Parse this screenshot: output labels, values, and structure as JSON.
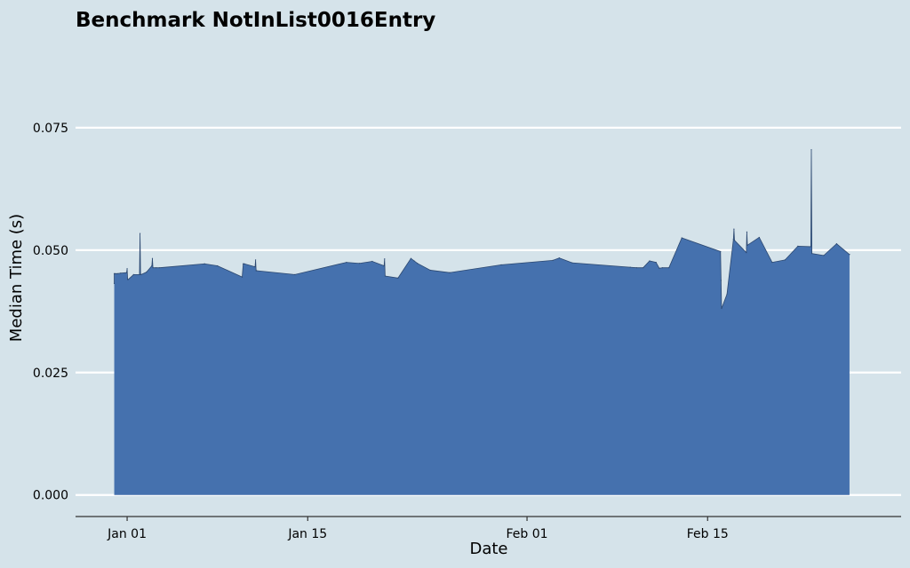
{
  "chart_data": {
    "type": "area",
    "title": "Benchmark NotInList0016Entry",
    "xlabel": "Date",
    "ylabel": "Median Time (s)",
    "x_ticks": [
      "Jan 01",
      "Jan 15",
      "Feb 01",
      "Feb 15"
    ],
    "x_tick_dates": [
      "2024-01-01",
      "2024-01-15",
      "2024-02-01",
      "2024-02-15"
    ],
    "y_ticks": [
      "0.000",
      "0.025",
      "0.050",
      "0.075"
    ],
    "y_tick_values": [
      0.0,
      0.025,
      0.05,
      0.075
    ],
    "xlim": [
      "2023-12-28T00:00",
      "2024-03-01T00:00"
    ],
    "ylim": [
      -0.0044,
      0.0757
    ],
    "grid": "horizontal",
    "fill_color": "#4571ae",
    "line_color": "#2c4870",
    "series": [
      {
        "x": [
          "2023-12-31T00:00",
          "2023-12-31T00:00",
          "2023-12-31T02:00",
          "2023-12-31T06:00",
          "2023-12-31T12:00",
          "2023-12-31T23:00",
          "2024-01-01T00:00",
          "2024-01-01T01:00",
          "2024-01-01T02:00",
          "2024-01-01T12:00",
          "2024-01-01T23:00",
          "2024-01-02T00:00",
          "2024-01-02T01:00",
          "2024-01-02T02:00",
          "2024-01-02T12:00",
          "2024-01-02T22:00",
          "2024-01-02T23:00",
          "2024-01-03T00:00",
          "2024-01-03T06:00",
          "2024-01-03T12:00",
          "2024-01-07T00:00",
          "2024-01-08T00:00",
          "2024-01-09T22:00",
          "2024-01-10T00:00",
          "2024-01-10T02:00",
          "2024-01-10T22:00",
          "2024-01-10T23:00",
          "2024-01-11T00:00",
          "2024-01-11T01:00",
          "2024-01-14T00:00",
          "2024-01-18T00:00",
          "2024-01-19T00:00",
          "2024-01-20T00:00",
          "2024-01-20T22:00",
          "2024-01-20T23:00",
          "2024-01-21T00:00",
          "2024-01-22T00:00",
          "2024-01-23T00:00",
          "2024-01-23T06:00",
          "2024-01-23T12:00",
          "2024-01-24T12:00",
          "2024-01-26T00:00",
          "2024-01-30T00:00",
          "2024-02-03T00:00",
          "2024-02-03T12:00",
          "2024-02-04T12:00",
          "2024-02-09T00:00",
          "2024-02-09T12:00",
          "2024-02-10T00:00",
          "2024-02-10T12:00",
          "2024-02-11T00:00",
          "2024-02-11T06:00",
          "2024-02-11T12:00",
          "2024-02-12T00:00",
          "2024-02-13T00:00",
          "2024-02-16T00:00",
          "2024-02-16T01:00",
          "2024-02-16T02:00",
          "2024-02-16T12:00",
          "2024-02-17T00:00",
          "2024-02-17T01:00",
          "2024-02-17T02:00",
          "2024-02-18T00:00",
          "2024-02-18T01:00",
          "2024-02-18T02:00",
          "2024-02-19T00:00",
          "2024-02-20T00:00",
          "2024-02-21T00:00",
          "2024-02-22T00:00",
          "2024-02-23T00:00",
          "2024-02-23T01:00",
          "2024-02-23T02:00",
          "2024-02-24T00:00",
          "2024-02-25T00:00",
          "2024-02-26T00:00"
        ],
        "y": [
          0.0432,
          0.0452,
          0.0452,
          0.0452,
          0.0453,
          0.0454,
          0.0462,
          0.044,
          0.044,
          0.045,
          0.045,
          0.0534,
          0.045,
          0.045,
          0.0455,
          0.0468,
          0.0483,
          0.0464,
          0.0464,
          0.0464,
          0.0472,
          0.0468,
          0.0445,
          0.0472,
          0.0472,
          0.0466,
          0.048,
          0.0458,
          0.0458,
          0.045,
          0.0475,
          0.0473,
          0.0477,
          0.0468,
          0.0482,
          0.0447,
          0.0443,
          0.0483,
          0.0478,
          0.0473,
          0.0459,
          0.0454,
          0.047,
          0.0479,
          0.0484,
          0.0474,
          0.0465,
          0.0464,
          0.0464,
          0.0478,
          0.0475,
          0.0463,
          0.0464,
          0.0464,
          0.0525,
          0.0497,
          0.0438,
          0.0381,
          0.041,
          0.0522,
          0.0543,
          0.052,
          0.0495,
          0.0537,
          0.051,
          0.0526,
          0.0475,
          0.048,
          0.0508,
          0.0507,
          0.0705,
          0.0493,
          0.0489,
          0.0513,
          0.0491
        ]
      }
    ]
  }
}
